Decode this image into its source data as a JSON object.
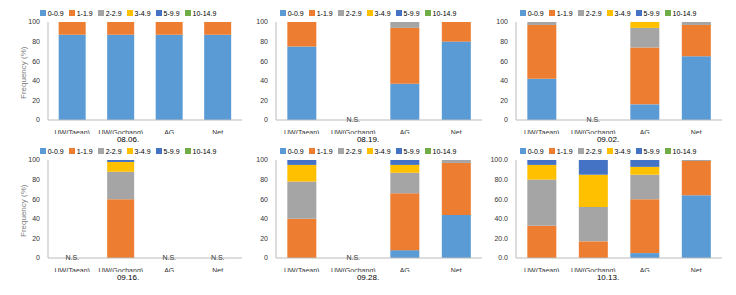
{
  "chart_data": [
    {
      "type": "bar",
      "title": "08.06.",
      "stacked": true,
      "grid": false,
      "legend": "top",
      "y_label": "Frequency (%)",
      "categories": [
        "UW(Taean)",
        "UW(Gochang)",
        "AG",
        "Net"
      ],
      "ylim": [
        0,
        100
      ],
      "yticks": [
        0,
        20,
        40,
        60,
        80,
        100
      ],
      "annotations": [],
      "series": [
        {
          "name": "0-0.9",
          "color": "#5b9bd5",
          "values": [
            87,
            87,
            87,
            87
          ]
        },
        {
          "name": "1-1.9",
          "color": "#ed7d31",
          "values": [
            13,
            13,
            13,
            13
          ]
        },
        {
          "name": "2-2.9",
          "color": "#a5a5a5",
          "values": [
            0,
            0,
            0,
            0
          ]
        },
        {
          "name": "3-4.9",
          "color": "#ffc000",
          "values": [
            0,
            0,
            0,
            0
          ]
        },
        {
          "name": "5-9.9",
          "color": "#4472c4",
          "values": [
            0,
            0,
            0,
            0
          ]
        },
        {
          "name": "10-14.9",
          "color": "#70ad47",
          "values": [
            0,
            0,
            0,
            0
          ]
        }
      ]
    },
    {
      "type": "bar",
      "title": "08.19.",
      "stacked": true,
      "grid": false,
      "legend": "top",
      "categories": [
        "UW(Taean)",
        "UW(Gochang)",
        "AG",
        "Net"
      ],
      "ylim": [
        0,
        100
      ],
      "yticks": [
        0,
        20,
        40,
        60,
        80,
        100
      ],
      "annotations": [
        {
          "category": "UW(Gochang)",
          "text": "N.S."
        }
      ],
      "series": [
        {
          "name": "0-0.9",
          "color": "#5b9bd5",
          "values": [
            75,
            null,
            37,
            80
          ]
        },
        {
          "name": "1-1.9",
          "color": "#ed7d31",
          "values": [
            25,
            null,
            57,
            20
          ]
        },
        {
          "name": "2-2.9",
          "color": "#a5a5a5",
          "values": [
            0,
            null,
            6,
            0
          ]
        },
        {
          "name": "3-4.9",
          "color": "#ffc000",
          "values": [
            0,
            null,
            0,
            0
          ]
        },
        {
          "name": "5-9.9",
          "color": "#4472c4",
          "values": [
            0,
            null,
            0,
            0
          ]
        },
        {
          "name": "10-14.9",
          "color": "#70ad47",
          "values": [
            0,
            null,
            0,
            0
          ]
        }
      ]
    },
    {
      "type": "bar",
      "title": "09.02.",
      "stacked": true,
      "grid": false,
      "legend": "top",
      "categories": [
        "UW(Taean)",
        "UW(Gochang)",
        "AG",
        "Net"
      ],
      "ylim": [
        0,
        100
      ],
      "yticks": [
        0,
        20,
        40,
        60,
        80,
        100
      ],
      "annotations": [
        {
          "category": "UW(Gochang)",
          "text": "N.S."
        }
      ],
      "series": [
        {
          "name": "0-0.9",
          "color": "#5b9bd5",
          "values": [
            42,
            null,
            16,
            65
          ]
        },
        {
          "name": "1-1.9",
          "color": "#ed7d31",
          "values": [
            55,
            null,
            58,
            32
          ]
        },
        {
          "name": "2-2.9",
          "color": "#a5a5a5",
          "values": [
            3,
            null,
            20,
            3
          ]
        },
        {
          "name": "3-4.9",
          "color": "#ffc000",
          "values": [
            0,
            null,
            6,
            0
          ]
        },
        {
          "name": "5-9.9",
          "color": "#4472c4",
          "values": [
            0,
            null,
            0,
            0
          ]
        },
        {
          "name": "10-14.9",
          "color": "#70ad47",
          "values": [
            0,
            null,
            0,
            0
          ]
        }
      ]
    },
    {
      "type": "bar",
      "title": "09.16.",
      "stacked": true,
      "grid": false,
      "legend": "top",
      "y_label": "Frequency (%)",
      "categories": [
        "UW(Taean)",
        "UW(Gochang)",
        "AG",
        "Net"
      ],
      "ylim": [
        0,
        100
      ],
      "yticks": [
        0,
        20,
        40,
        60,
        80,
        100
      ],
      "annotations": [
        {
          "category": "UW(Taean)",
          "text": "N.S."
        },
        {
          "category": "AG",
          "text": "N.S."
        },
        {
          "category": "Net",
          "text": "N.S."
        }
      ],
      "series": [
        {
          "name": "0-0.9",
          "color": "#5b9bd5",
          "values": [
            null,
            0,
            null,
            null
          ]
        },
        {
          "name": "1-1.9",
          "color": "#ed7d31",
          "values": [
            null,
            60,
            null,
            null
          ]
        },
        {
          "name": "2-2.9",
          "color": "#a5a5a5",
          "values": [
            null,
            28,
            null,
            null
          ]
        },
        {
          "name": "3-4.9",
          "color": "#ffc000",
          "values": [
            null,
            10,
            null,
            null
          ]
        },
        {
          "name": "5-9.9",
          "color": "#4472c4",
          "values": [
            null,
            2,
            null,
            null
          ]
        },
        {
          "name": "10-14.9",
          "color": "#70ad47",
          "values": [
            null,
            0,
            null,
            null
          ]
        }
      ]
    },
    {
      "type": "bar",
      "title": "09.28.",
      "stacked": true,
      "grid": false,
      "legend": "top",
      "categories": [
        "UW(Taean)",
        "UW(Gochang)",
        "AG",
        "Net"
      ],
      "ylim": [
        0,
        100
      ],
      "yticks": [
        0,
        20,
        40,
        60,
        80,
        100
      ],
      "annotations": [
        {
          "category": "UW(Gochang)",
          "text": "N.S."
        }
      ],
      "series": [
        {
          "name": "0-0.9",
          "color": "#5b9bd5",
          "values": [
            0,
            null,
            8,
            44
          ]
        },
        {
          "name": "1-1.9",
          "color": "#ed7d31",
          "values": [
            40,
            null,
            58,
            53
          ]
        },
        {
          "name": "2-2.9",
          "color": "#a5a5a5",
          "values": [
            38,
            null,
            21,
            3
          ]
        },
        {
          "name": "3-4.9",
          "color": "#ffc000",
          "values": [
            17,
            null,
            8,
            0
          ]
        },
        {
          "name": "5-9.9",
          "color": "#4472c4",
          "values": [
            5,
            null,
            5,
            0
          ]
        },
        {
          "name": "10-14.9",
          "color": "#70ad47",
          "values": [
            0,
            null,
            0,
            0
          ]
        }
      ]
    },
    {
      "type": "bar",
      "title": "10.13.",
      "stacked": true,
      "grid": false,
      "legend": "top",
      "categories": [
        "UW(Taean)",
        "UW(Gochang)",
        "AG",
        "Net"
      ],
      "ylim": [
        0,
        100
      ],
      "yticks": [
        {
          "value": 0,
          "label": "0.0"
        },
        {
          "value": 20,
          "label": "20.0"
        },
        {
          "value": 40,
          "label": "40.0"
        },
        {
          "value": 60,
          "label": "60.0"
        },
        {
          "value": 80,
          "label": "80.0"
        },
        {
          "value": 100,
          "label": "100.0"
        }
      ],
      "annotations": [],
      "series": [
        {
          "name": "0-0.9",
          "color": "#5b9bd5",
          "values": [
            0,
            0,
            5,
            64
          ]
        },
        {
          "name": "1-1.9",
          "color": "#ed7d31",
          "values": [
            33,
            17,
            55,
            35
          ]
        },
        {
          "name": "2-2.9",
          "color": "#a5a5a5",
          "values": [
            47,
            35,
            25,
            1
          ]
        },
        {
          "name": "3-4.9",
          "color": "#ffc000",
          "values": [
            15,
            33,
            8,
            0
          ]
        },
        {
          "name": "5-9.9",
          "color": "#4472c4",
          "values": [
            5,
            15,
            7,
            0
          ]
        },
        {
          "name": "10-14.9",
          "color": "#70ad47",
          "values": [
            0,
            0,
            0,
            0
          ]
        }
      ]
    }
  ]
}
